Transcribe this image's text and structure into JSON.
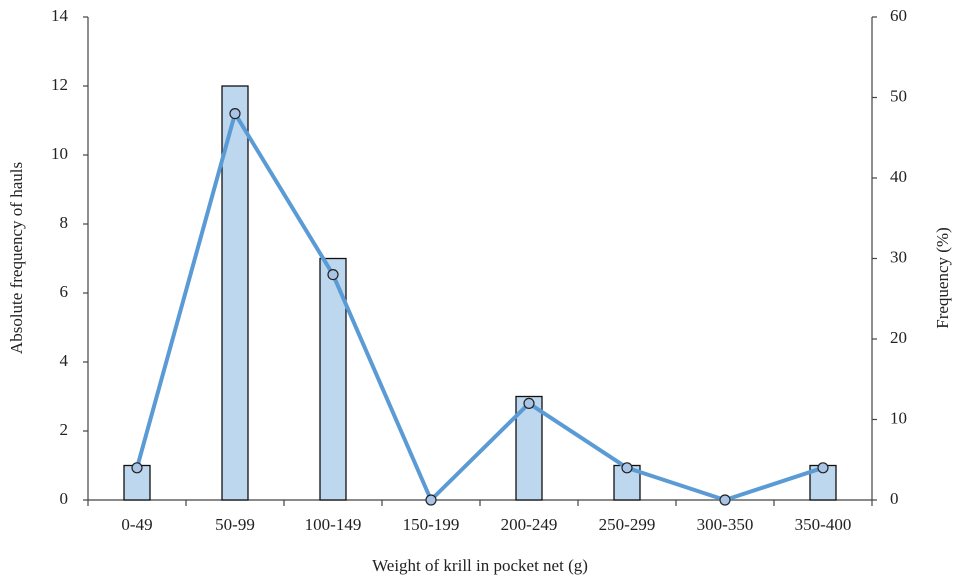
{
  "chart_data": {
    "type": "bar",
    "x_label": "Weight of krill in pocket net (g)",
    "y_label": "Absolute frequency of hauls",
    "y2_label": "Frequency (%)",
    "categories": [
      "0-49",
      "50-99",
      "100-149",
      "150-199",
      "200-249",
      "250-299",
      "300-350",
      "350-400"
    ],
    "series": [
      {
        "type": "bar",
        "color": "#bdd7ee",
        "values": [
          1,
          12,
          7,
          0,
          3,
          1,
          0,
          1
        ]
      },
      {
        "type": "line",
        "axis": "y2",
        "color": "#5b9bd5",
        "values": [
          4,
          48,
          28,
          0,
          12,
          4,
          0,
          4
        ]
      }
    ],
    "ylim": [
      0,
      14
    ],
    "yticks": [
      0,
      2,
      4,
      6,
      8,
      10,
      12,
      14
    ],
    "y2lim": [
      0,
      60
    ],
    "y2ticks": [
      0,
      10,
      20,
      30,
      40,
      50,
      60
    ]
  }
}
